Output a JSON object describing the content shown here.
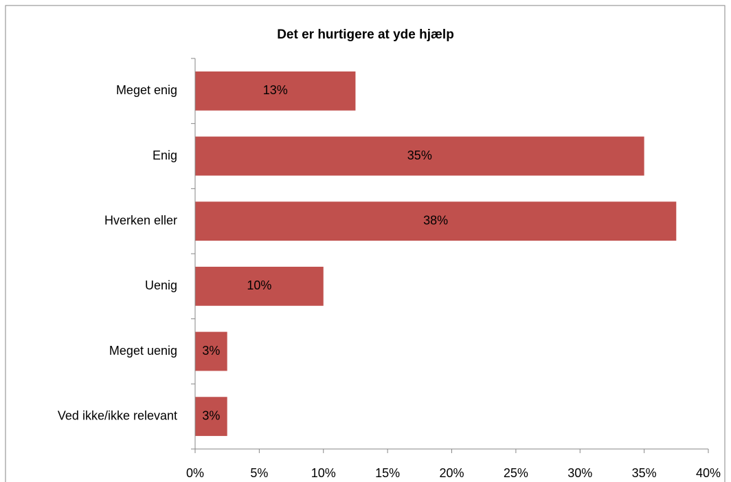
{
  "chart_data": {
    "type": "hbar",
    "title": "Det er hurtigere at yde hjælp",
    "categories": [
      "Meget enig",
      "Enig",
      "Hverken eller",
      "Uenig",
      "Meget uenig",
      "Ved ikke/ikke relevant"
    ],
    "values": [
      12.5,
      35,
      37.5,
      10,
      2.5,
      2.5
    ],
    "value_labels": [
      "13%",
      "35%",
      "38%",
      "10%",
      "3%",
      "3%"
    ],
    "color": "#c0504d",
    "xlim": [
      0,
      40
    ],
    "xticks": [
      {
        "value": 0,
        "label": "0%"
      },
      {
        "value": 5,
        "label": "5%"
      },
      {
        "value": 10,
        "label": "10%"
      },
      {
        "value": 15,
        "label": "15%"
      },
      {
        "value": 20,
        "label": "20%"
      },
      {
        "value": 25,
        "label": "25%"
      },
      {
        "value": 30,
        "label": "30%"
      },
      {
        "value": 35,
        "label": "35%"
      },
      {
        "value": 40,
        "label": "40%"
      }
    ]
  }
}
